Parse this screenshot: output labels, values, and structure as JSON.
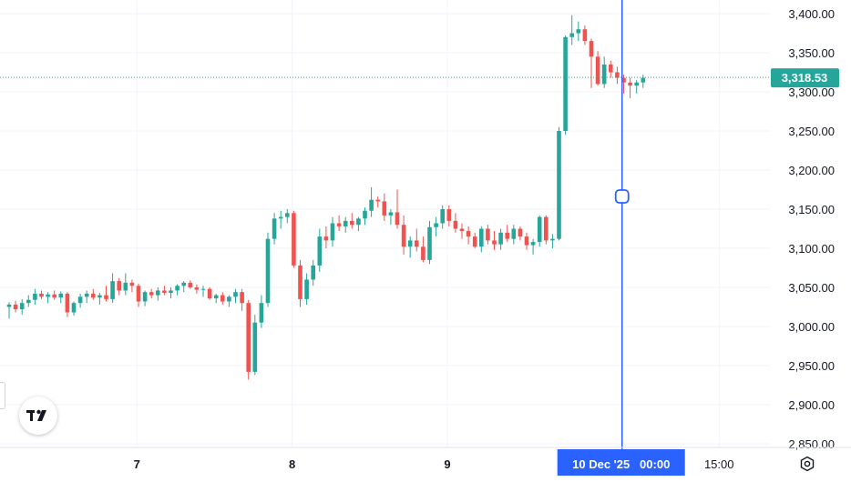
{
  "colors": {
    "up": "#26a69a",
    "down": "#ef5350",
    "price_line": "#26a69a",
    "crosshair": "#2962ff",
    "grid": "#f0f3fa",
    "axis_text": "#131722"
  },
  "price_label": "3,318.53",
  "crosshair_time_label": "10 Dec '25   00:00",
  "icons": {
    "logo": "tradingview-logo-icon",
    "settings": "gear-icon"
  },
  "chart_data": {
    "type": "candlestick",
    "ylim": [
      2850,
      3410
    ],
    "y_ticks": [
      2850,
      2900,
      2950,
      3000,
      3050,
      3100,
      3150,
      3200,
      3250,
      3300,
      3350,
      3400
    ],
    "y_tick_labels": [
      "2,850.00",
      "2,900.00",
      "2,950.00",
      "3,000.00",
      "3,050.00",
      "3,100.00",
      "3,150.00",
      "3,200.00",
      "3,250.00",
      "3,300.00",
      "3,350.00",
      "3,400.00"
    ],
    "x_ticks": [
      {
        "label": "7",
        "bar": 19.75
      },
      {
        "label": "8",
        "bar": 43.75
      },
      {
        "label": "9",
        "bar": 67.75
      },
      {
        "label": "15:00",
        "bar": 109.75
      }
    ],
    "current_price": 3318.53,
    "crosshair_bar": 94.75,
    "grid": true,
    "candles": [
      [
        3025,
        3031,
        3010,
        3028
      ],
      [
        3028,
        3033,
        3018,
        3022
      ],
      [
        3022,
        3035,
        3015,
        3030
      ],
      [
        3030,
        3040,
        3025,
        3034
      ],
      [
        3034,
        3048,
        3028,
        3042
      ],
      [
        3042,
        3046,
        3035,
        3038
      ],
      [
        3038,
        3044,
        3030,
        3041
      ],
      [
        3041,
        3046,
        3034,
        3037
      ],
      [
        3037,
        3045,
        3030,
        3042
      ],
      [
        3042,
        3044,
        3012,
        3018
      ],
      [
        3018,
        3032,
        3014,
        3030
      ],
      [
        3030,
        3042,
        3024,
        3038
      ],
      [
        3038,
        3046,
        3030,
        3042
      ],
      [
        3042,
        3048,
        3034,
        3037
      ],
      [
        3037,
        3043,
        3028,
        3040
      ],
      [
        3040,
        3052,
        3032,
        3035
      ],
      [
        3035,
        3068,
        3030,
        3058
      ],
      [
        3058,
        3062,
        3040,
        3046
      ],
      [
        3046,
        3068,
        3040,
        3056
      ],
      [
        3056,
        3060,
        3044,
        3052
      ],
      [
        3052,
        3055,
        3025,
        3032
      ],
      [
        3032,
        3046,
        3026,
        3044
      ],
      [
        3044,
        3048,
        3036,
        3040
      ],
      [
        3040,
        3050,
        3033,
        3046
      ],
      [
        3046,
        3052,
        3040,
        3043
      ],
      [
        3043,
        3050,
        3036,
        3046
      ],
      [
        3046,
        3054,
        3040,
        3052
      ],
      [
        3052,
        3058,
        3044,
        3056
      ],
      [
        3056,
        3059,
        3048,
        3050
      ],
      [
        3050,
        3054,
        3042,
        3047
      ],
      [
        3047,
        3052,
        3038,
        3048
      ],
      [
        3048,
        3050,
        3034,
        3036
      ],
      [
        3036,
        3042,
        3030,
        3040
      ],
      [
        3040,
        3044,
        3028,
        3032
      ],
      [
        3032,
        3040,
        3025,
        3038
      ],
      [
        3038,
        3048,
        3030,
        3044
      ],
      [
        3044,
        3048,
        3020,
        3030
      ],
      [
        3030,
        3034,
        2932,
        2942
      ],
      [
        2942,
        3015,
        2938,
        3005
      ],
      [
        3005,
        3040,
        2998,
        3030
      ],
      [
        3030,
        3120,
        3025,
        3112
      ],
      [
        3112,
        3145,
        3105,
        3138
      ],
      [
        3138,
        3148,
        3125,
        3140
      ],
      [
        3140,
        3150,
        3132,
        3145
      ],
      [
        3145,
        3148,
        3075,
        3078
      ],
      [
        3078,
        3085,
        3025,
        3035
      ],
      [
        3035,
        3068,
        3028,
        3060
      ],
      [
        3060,
        3085,
        3052,
        3078
      ],
      [
        3078,
        3125,
        3070,
        3115
      ],
      [
        3115,
        3128,
        3100,
        3110
      ],
      [
        3110,
        3140,
        3102,
        3132
      ],
      [
        3132,
        3142,
        3122,
        3128
      ],
      [
        3128,
        3140,
        3120,
        3135
      ],
      [
        3135,
        3145,
        3125,
        3130
      ],
      [
        3130,
        3140,
        3122,
        3138
      ],
      [
        3138,
        3152,
        3130,
        3148
      ],
      [
        3148,
        3178,
        3140,
        3162
      ],
      [
        3162,
        3166,
        3152,
        3160
      ],
      [
        3160,
        3170,
        3135,
        3142
      ],
      [
        3142,
        3150,
        3130,
        3146
      ],
      [
        3146,
        3175,
        3125,
        3130
      ],
      [
        3130,
        3142,
        3092,
        3102
      ],
      [
        3102,
        3115,
        3088,
        3110
      ],
      [
        3110,
        3125,
        3096,
        3102
      ],
      [
        3102,
        3115,
        3082,
        3085
      ],
      [
        3085,
        3135,
        3080,
        3127
      ],
      [
        3127,
        3140,
        3115,
        3132
      ],
      [
        3132,
        3155,
        3125,
        3150
      ],
      [
        3150,
        3155,
        3128,
        3135
      ],
      [
        3135,
        3145,
        3120,
        3125
      ],
      [
        3125,
        3132,
        3112,
        3122
      ],
      [
        3122,
        3128,
        3105,
        3115
      ],
      [
        3115,
        3120,
        3100,
        3102
      ],
      [
        3102,
        3128,
        3095,
        3125
      ],
      [
        3125,
        3130,
        3105,
        3110
      ],
      [
        3110,
        3122,
        3098,
        3105
      ],
      [
        3105,
        3125,
        3098,
        3120
      ],
      [
        3120,
        3130,
        3108,
        3112
      ],
      [
        3112,
        3130,
        3105,
        3125
      ],
      [
        3125,
        3128,
        3110,
        3115
      ],
      [
        3115,
        3120,
        3098,
        3104
      ],
      [
        3104,
        3112,
        3092,
        3108
      ],
      [
        3108,
        3142,
        3102,
        3140
      ],
      [
        3140,
        3142,
        3105,
        3110
      ],
      [
        3110,
        3118,
        3100,
        3112
      ],
      [
        3112,
        3255,
        3110,
        3250
      ],
      [
        3250,
        3372,
        3245,
        3370
      ],
      [
        3370,
        3398,
        3360,
        3375
      ],
      [
        3375,
        3390,
        3365,
        3380
      ],
      [
        3380,
        3385,
        3360,
        3365
      ],
      [
        3365,
        3368,
        3305,
        3345
      ],
      [
        3345,
        3352,
        3308,
        3310
      ],
      [
        3310,
        3345,
        3305,
        3335
      ],
      [
        3335,
        3340,
        3318,
        3325
      ],
      [
        3325,
        3332,
        3310,
        3318
      ],
      [
        3318,
        3322,
        3298,
        3312
      ],
      [
        3312,
        3318,
        3292,
        3308
      ],
      [
        3308,
        3315,
        3298,
        3312
      ],
      [
        3312,
        3322,
        3305,
        3318
      ]
    ]
  }
}
